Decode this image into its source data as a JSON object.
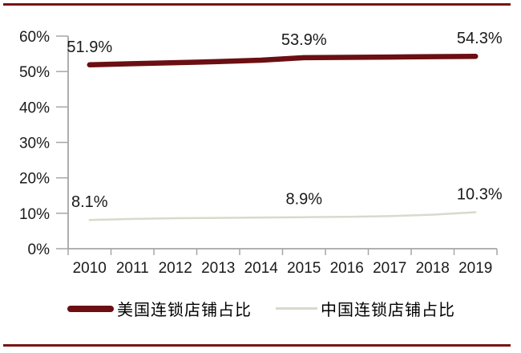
{
  "page": {
    "background": "#ffffff",
    "rule_color": "#7a1315",
    "axis_color": "#a6a6a6",
    "label_color": "#1a1a1a"
  },
  "chart_data": {
    "type": "line",
    "title": "",
    "xlabel": "",
    "ylabel": "",
    "categories": [
      "2010",
      "2011",
      "2012",
      "2013",
      "2014",
      "2015",
      "2016",
      "2017",
      "2018",
      "2019"
    ],
    "y_ticks": [
      "0%",
      "10%",
      "20%",
      "30%",
      "40%",
      "50%",
      "60%"
    ],
    "ylim": [
      0,
      60
    ],
    "grid": false,
    "legend_position": "bottom",
    "series": [
      {
        "name": "美国连锁店铺占比",
        "color": "#6b0f12",
        "stroke_width": 6.5,
        "style": "thick",
        "values": [
          51.9,
          52.2,
          52.5,
          52.8,
          53.2,
          53.9,
          54.0,
          54.1,
          54.2,
          54.3
        ],
        "point_labels": [
          {
            "index": 0,
            "text": "51.9%"
          },
          {
            "index": 5,
            "text": "53.9%"
          },
          {
            "index": 9,
            "text": "54.3%"
          }
        ]
      },
      {
        "name": "中国连锁店铺占比",
        "color": "#d9d9cc",
        "stroke_width": 2.5,
        "style": "thin",
        "values": [
          8.1,
          8.4,
          8.6,
          8.7,
          8.8,
          8.9,
          9.0,
          9.2,
          9.6,
          10.3
        ],
        "point_labels": [
          {
            "index": 0,
            "text": "8.1%"
          },
          {
            "index": 5,
            "text": "8.9%"
          },
          {
            "index": 9,
            "text": "10.3%"
          }
        ]
      }
    ]
  },
  "legend": {
    "items": [
      {
        "label": "美国连锁店铺占比"
      },
      {
        "label": "中国连锁店铺占比"
      }
    ]
  }
}
